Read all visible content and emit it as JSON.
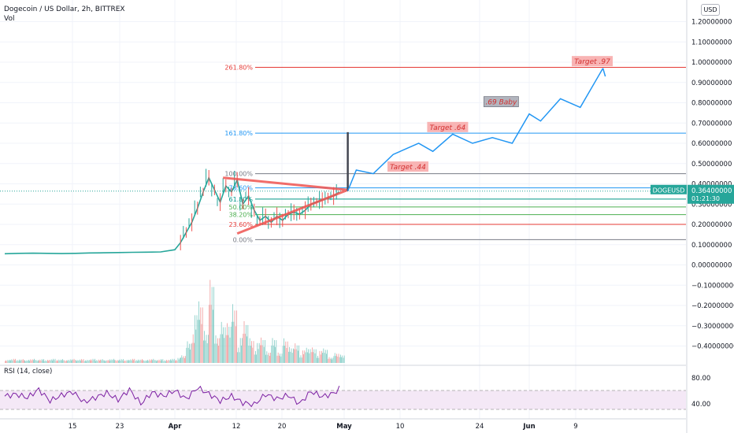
{
  "header": {
    "title": "Dogecoin / US Dollar, 2h, BITTREX",
    "volume_label": "Vol",
    "currency": "USD",
    "rsi_label": "RSI (14, close)"
  },
  "price_tag": {
    "symbol": "DOGEUSD",
    "price": "0.36400000",
    "countdown": "01:21:30"
  },
  "chart_data": {
    "type": "line",
    "symbol": "DOGEUSD",
    "y_axis": {
      "ticks": [
        1.2,
        1.1,
        1.0,
        0.9,
        0.8,
        0.7,
        0.6,
        0.5,
        0.4,
        0.3,
        0.2,
        0.1,
        0.0,
        -0.1,
        -0.2,
        -0.3,
        -0.4
      ],
      "tick_labels": [
        "1.20000000",
        "1.10000000",
        "1.00000000",
        "0.90000000",
        "0.80000000",
        "0.70000000",
        "0.60000000",
        "0.50000000",
        "0.40000000",
        "0.30000000",
        "0.20000000",
        "0.10000000",
        "0.00000000",
        "−0.10000000",
        "−0.20000000",
        "−0.30000000",
        "−0.40000000"
      ]
    },
    "x_axis": {
      "tick_labels": [
        "15",
        "23",
        "Apr",
        "12",
        "20",
        "May",
        "10",
        "24",
        "Jun",
        "9"
      ],
      "bold_labels": [
        "Apr",
        "May",
        "Jun"
      ]
    },
    "rsi_axis": {
      "tick_labels": [
        "80.00",
        "40.00"
      ]
    },
    "last_price": 0.364,
    "price_history": {
      "x": [
        0,
        5,
        10,
        15,
        20,
        25,
        30,
        35,
        40,
        45,
        50,
        55,
        60,
        62,
        64,
        66,
        68,
        70,
        72,
        74,
        76,
        78,
        80,
        82,
        84,
        86,
        88,
        90,
        92,
        94,
        96,
        98,
        100,
        102,
        104,
        106,
        108,
        110,
        112,
        114,
        116,
        118
      ],
      "y": [
        0.055,
        0.057,
        0.058,
        0.057,
        0.056,
        0.057,
        0.059,
        0.06,
        0.061,
        0.062,
        0.063,
        0.064,
        0.075,
        0.11,
        0.16,
        0.21,
        0.28,
        0.36,
        0.43,
        0.37,
        0.31,
        0.39,
        0.36,
        0.42,
        0.3,
        0.34,
        0.27,
        0.22,
        0.24,
        0.21,
        0.24,
        0.22,
        0.25,
        0.26,
        0.25,
        0.27,
        0.3,
        0.31,
        0.32,
        0.33,
        0.34,
        0.36
      ]
    },
    "projection": {
      "x": [
        121,
        124,
        130,
        137,
        146,
        151,
        158,
        165,
        172,
        179,
        185,
        189,
        196,
        203,
        211
      ],
      "y": [
        0.365,
        0.468,
        0.45,
        0.545,
        0.6,
        0.56,
        0.645,
        0.6,
        0.628,
        0.6,
        0.745,
        0.71,
        0.82,
        0.777,
        0.97
      ]
    },
    "impulse_line": {
      "x": 121,
      "y_from": 0.365,
      "y_to": 0.655
    },
    "triangle": [
      {
        "x": 77,
        "y": 0.43
      },
      {
        "x": 121,
        "y": 0.37
      },
      {
        "x": 82,
        "y": 0.155
      }
    ],
    "fibonacci": [
      {
        "label": "261.80%",
        "value": 0.975,
        "color": "#e53935"
      },
      {
        "label": "161.80%",
        "value": 0.65,
        "color": "#2196f3"
      },
      {
        "label": "100.00%",
        "value": 0.45,
        "color": "#787b86"
      },
      {
        "label": "78.60%",
        "value": 0.38,
        "color": "#2196f3"
      },
      {
        "label": "61.80%",
        "value": 0.325,
        "color": "#009688"
      },
      {
        "label": "50.00%",
        "value": 0.286,
        "color": "#4caf50"
      },
      {
        "label": "38.20%",
        "value": 0.248,
        "color": "#4caf50"
      },
      {
        "label": "23.60%",
        "value": 0.2,
        "color": "#e53935"
      },
      {
        "label": "0.00%",
        "value": 0.125,
        "color": "#787b86"
      }
    ],
    "annotations": [
      {
        "text": "Target .44",
        "x": 135,
        "y": 0.46
      },
      {
        "text": "Target .64",
        "x": 149,
        "y": 0.655
      },
      {
        "text": "Target .97",
        "x": 200,
        "y": 0.98
      },
      {
        "text": ".69 Baby",
        "x": 169,
        "y": 0.78
      }
    ],
    "volume": {
      "x": [
        60,
        62,
        64,
        66,
        68,
        70,
        72,
        74,
        76,
        78,
        80,
        82,
        84,
        86,
        88,
        90,
        92,
        94,
        96,
        98,
        100,
        102,
        104,
        106,
        108,
        110,
        112,
        114,
        116
      ],
      "ratio": [
        0.06,
        0.1,
        0.35,
        0.6,
        0.85,
        0.55,
        1.0,
        0.4,
        0.75,
        0.5,
        0.9,
        0.3,
        0.55,
        0.4,
        0.25,
        0.35,
        0.2,
        0.3,
        0.15,
        0.45,
        0.2,
        0.3,
        0.15,
        0.2,
        0.25,
        0.15,
        0.2,
        0.1,
        0.12
      ]
    },
    "rsi": {
      "x": [
        0,
        4,
        8,
        12,
        16,
        20,
        24,
        28,
        32,
        36,
        40,
        44,
        48,
        52,
        56,
        60,
        64,
        68,
        72,
        76,
        80,
        84,
        88,
        92,
        96,
        100,
        104,
        108,
        112,
        116,
        118
      ],
      "y": [
        58,
        62,
        55,
        72,
        48,
        60,
        67,
        45,
        55,
        65,
        50,
        72,
        42,
        66,
        58,
        70,
        52,
        76,
        63,
        48,
        58,
        44,
        40,
        62,
        52,
        60,
        42,
        68,
        57,
        64,
        74
      ],
      "upper": 70,
      "lower": 30
    }
  }
}
